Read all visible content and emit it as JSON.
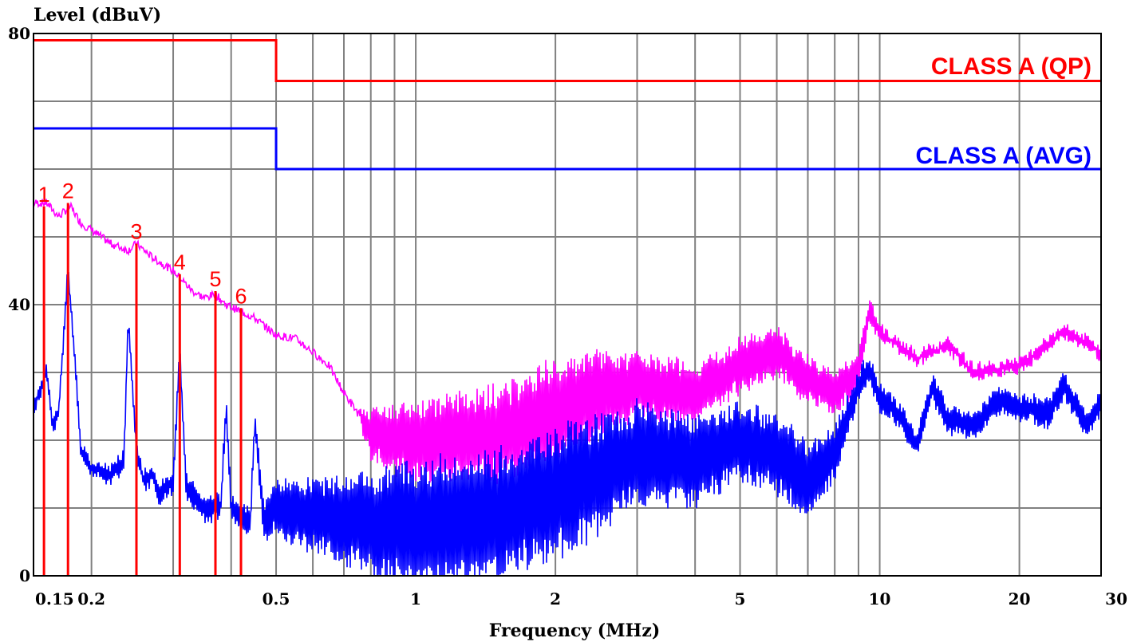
{
  "chart_data": {
    "type": "line",
    "title": "",
    "ylabel": "Level (dBuV)",
    "xlabel": "Frequency (MHz)",
    "x_scale": "log",
    "xlim": [
      0.15,
      30
    ],
    "ylim": [
      0,
      80
    ],
    "grid": true,
    "x_tick_labels": [
      {
        "value": 0.15,
        "label": "0.15"
      },
      {
        "value": 0.2,
        "label": "0.2"
      },
      {
        "value": 0.5,
        "label": "0.5"
      },
      {
        "value": 1,
        "label": "1"
      },
      {
        "value": 2,
        "label": "2"
      },
      {
        "value": 5,
        "label": "5"
      },
      {
        "value": 10,
        "label": "10"
      },
      {
        "value": 20,
        "label": "20"
      },
      {
        "value": 30,
        "label": "30"
      }
    ],
    "y_tick_labels": [
      {
        "value": 0,
        "label": "0"
      },
      {
        "value": 40,
        "label": "40"
      },
      {
        "value": 80,
        "label": "80"
      }
    ],
    "x_grid": [
      0.2,
      0.3,
      0.4,
      0.5,
      0.6,
      0.7,
      0.8,
      0.9,
      1,
      2,
      3,
      4,
      5,
      6,
      7,
      8,
      9,
      10,
      20
    ],
    "y_grid": [
      10,
      20,
      30,
      40,
      50,
      60,
      70
    ],
    "limits": [
      {
        "name": "CLASS A (QP)",
        "color": "#ff0000",
        "points": [
          [
            0.15,
            79
          ],
          [
            0.5,
            79
          ],
          [
            0.5,
            73
          ],
          [
            30,
            73
          ]
        ]
      },
      {
        "name": "CLASS A (AVG)",
        "color": "#0000ff",
        "points": [
          [
            0.15,
            66
          ],
          [
            0.5,
            66
          ],
          [
            0.5,
            60
          ],
          [
            30,
            60
          ]
        ]
      }
    ],
    "series": [
      {
        "color": "#ff00ff",
        "kind": "peak",
        "envelope": [
          [
            0.15,
            55
          ],
          [
            0.16,
            55
          ],
          [
            0.17,
            53
          ],
          [
            0.18,
            54.5
          ],
          [
            0.19,
            52
          ],
          [
            0.2,
            51
          ],
          [
            0.22,
            49
          ],
          [
            0.24,
            48
          ],
          [
            0.25,
            49
          ],
          [
            0.27,
            47
          ],
          [
            0.3,
            45
          ],
          [
            0.31,
            44
          ],
          [
            0.33,
            42
          ],
          [
            0.35,
            41
          ],
          [
            0.37,
            41.5
          ],
          [
            0.39,
            40
          ],
          [
            0.42,
            39
          ],
          [
            0.45,
            38
          ],
          [
            0.5,
            35.5
          ],
          [
            0.55,
            35
          ],
          [
            0.6,
            33
          ],
          [
            0.65,
            31
          ],
          [
            0.7,
            27
          ],
          [
            0.75,
            24
          ],
          [
            0.8,
            21
          ],
          [
            0.9,
            20
          ],
          [
            1,
            20
          ],
          [
            1.5,
            21
          ],
          [
            2,
            24
          ],
          [
            2.5,
            27
          ],
          [
            3,
            28
          ],
          [
            4,
            27
          ],
          [
            5,
            31
          ],
          [
            6,
            33
          ],
          [
            7,
            29
          ],
          [
            8,
            27
          ],
          [
            9,
            30
          ],
          [
            9.5,
            39
          ],
          [
            10,
            36
          ],
          [
            12,
            32
          ],
          [
            14,
            34
          ],
          [
            16,
            30
          ],
          [
            20,
            31
          ],
          [
            25,
            36
          ],
          [
            30,
            33
          ]
        ],
        "ripple": [
          [
            0.15,
            0
          ],
          [
            0.75,
            0
          ],
          [
            0.8,
            4
          ],
          [
            1,
            6
          ],
          [
            2,
            8
          ],
          [
            3,
            5
          ],
          [
            5,
            4
          ],
          [
            9,
            3
          ],
          [
            10,
            1
          ],
          [
            30,
            1
          ]
        ]
      },
      {
        "color": "#0000ff",
        "kind": "average",
        "envelope": [
          [
            0.15,
            25
          ],
          [
            0.16,
            30
          ],
          [
            0.165,
            22
          ],
          [
            0.17,
            24
          ],
          [
            0.178,
            45
          ],
          [
            0.185,
            30
          ],
          [
            0.19,
            18
          ],
          [
            0.2,
            16
          ],
          [
            0.22,
            15
          ],
          [
            0.235,
            17
          ],
          [
            0.24,
            38
          ],
          [
            0.25,
            18
          ],
          [
            0.26,
            14
          ],
          [
            0.27,
            15
          ],
          [
            0.28,
            12
          ],
          [
            0.3,
            14
          ],
          [
            0.31,
            33
          ],
          [
            0.32,
            13
          ],
          [
            0.35,
            10
          ],
          [
            0.38,
            10
          ],
          [
            0.39,
            25
          ],
          [
            0.4,
            10
          ],
          [
            0.44,
            8
          ],
          [
            0.45,
            23
          ],
          [
            0.47,
            8
          ],
          [
            0.5,
            10
          ],
          [
            0.6,
            9
          ],
          [
            0.8,
            8
          ],
          [
            1,
            7
          ],
          [
            1.5,
            9
          ],
          [
            2,
            12
          ],
          [
            2.5,
            15
          ],
          [
            3,
            18
          ],
          [
            4,
            17
          ],
          [
            5,
            20
          ],
          [
            6,
            18
          ],
          [
            7,
            14
          ],
          [
            8,
            18
          ],
          [
            9,
            28
          ],
          [
            9.5,
            31
          ],
          [
            10,
            26
          ],
          [
            11,
            24
          ],
          [
            12,
            19
          ],
          [
            13,
            28
          ],
          [
            14,
            23
          ],
          [
            16,
            22
          ],
          [
            18,
            26
          ],
          [
            20,
            25
          ],
          [
            23,
            24
          ],
          [
            25,
            28
          ],
          [
            28,
            22
          ],
          [
            30,
            26
          ]
        ],
        "ripple": [
          [
            0.15,
            1
          ],
          [
            0.45,
            2
          ],
          [
            0.5,
            4
          ],
          [
            0.8,
            8
          ],
          [
            1,
            10
          ],
          [
            2,
            10
          ],
          [
            3,
            8
          ],
          [
            5,
            6
          ],
          [
            7,
            6
          ],
          [
            9,
            2
          ],
          [
            30,
            2
          ]
        ]
      }
    ],
    "markers": [
      {
        "label": "1",
        "freq": 0.158,
        "level": 54.5
      },
      {
        "label": "2",
        "freq": 0.178,
        "level": 55
      },
      {
        "label": "3",
        "freq": 0.25,
        "level": 49
      },
      {
        "label": "4",
        "freq": 0.31,
        "level": 44.5
      },
      {
        "label": "5",
        "freq": 0.37,
        "level": 42
      },
      {
        "label": "6",
        "freq": 0.42,
        "level": 39.5
      }
    ],
    "marker_color": "#ff0000"
  }
}
